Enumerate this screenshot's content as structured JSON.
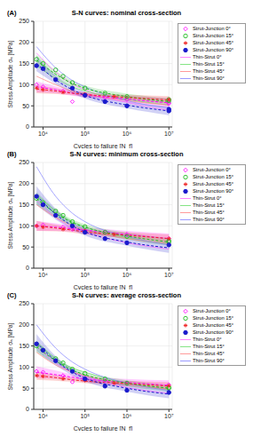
{
  "chart_data": [
    {
      "type": "scatter",
      "annotations": [
        "(A)"
      ],
      "title": "S-N curves: nominal cross-section",
      "xlabel": "Cycles to failure [N_f]",
      "ylabel": "Stress Amplitude σₐ [MPa]",
      "log": "x",
      "grid": true,
      "legend": "right",
      "xlim": [
        6000,
        12000000
      ],
      "xticks": [
        {
          "value": 10000,
          "label": "10⁴"
        },
        {
          "value": 100000,
          "label": "10⁵"
        },
        {
          "value": 1000000,
          "label": "10⁶"
        },
        {
          "value": 10000000,
          "label": "10⁷"
        }
      ],
      "ylim": [
        0,
        250
      ],
      "yticks": [
        0,
        50,
        100,
        150,
        200,
        250
      ],
      "x": [
        7000,
        20000,
        50000,
        100000,
        1000000,
        10000000
      ],
      "series": [
        {
          "name": "Strut-Junction 0°",
          "type": "scatter",
          "color": "#ff00ff",
          "marker": "diamond",
          "line_style": "dashed",
          "x": [
            7000,
            10000,
            30000,
            50000,
            100000,
            300000,
            1000000,
            10000000,
            10000000
          ],
          "values": [
            100,
            95,
            85,
            60,
            75,
            70,
            65,
            58,
            55
          ],
          "fit": [
            95,
            88,
            80,
            76,
            66,
            57
          ],
          "band_lower": [
            82,
            80,
            74,
            70,
            58,
            45
          ],
          "band_upper": [
            108,
            96,
            86,
            82,
            74,
            69
          ]
        },
        {
          "name": "Strut-Junction 15°",
          "type": "scatter",
          "color": "#22bb22",
          "marker": "circle",
          "line_style": "dashed",
          "x": [
            7000,
            10000,
            20000,
            30000,
            50000,
            100000,
            300000,
            1000000,
            10000000,
            10000000
          ],
          "values": [
            160,
            150,
            135,
            120,
            105,
            92,
            80,
            72,
            65,
            62
          ],
          "fit": [
            158,
            125,
            103,
            92,
            72,
            60
          ],
          "band_lower": [
            145,
            117,
            97,
            86,
            65,
            52
          ],
          "band_upper": [
            171,
            133,
            109,
            98,
            79,
            68
          ]
        },
        {
          "name": "Strut-Junction 45°",
          "type": "scatter",
          "color": "#ee2222",
          "marker": "star",
          "line_style": "dashed",
          "x": [
            7000,
            10000,
            30000,
            100000,
            500000,
            10000000
          ],
          "values": [
            92,
            88,
            82,
            78,
            72,
            65
          ],
          "fit": [
            90,
            85,
            80,
            77,
            70,
            64
          ],
          "band_lower": [
            80,
            78,
            75,
            72,
            64,
            55
          ],
          "band_upper": [
            100,
            92,
            85,
            82,
            76,
            73
          ]
        },
        {
          "name": "Strut-Junction 90°",
          "type": "scatter",
          "color": "#1a1acc",
          "marker": "dot",
          "line_style": "dashed",
          "x": [
            7000,
            10000,
            20000,
            50000,
            100000,
            300000,
            1000000,
            10000000,
            10000000
          ],
          "values": [
            145,
            138,
            112,
            92,
            75,
            60,
            50,
            42,
            38
          ],
          "fit": [
            150,
            112,
            88,
            75,
            52,
            38
          ],
          "band_lower": [
            132,
            102,
            80,
            67,
            44,
            28
          ],
          "band_upper": [
            168,
            122,
            96,
            83,
            60,
            48
          ]
        },
        {
          "name": "Thin-Strut 0°",
          "type": "line",
          "color": "#ff66ff",
          "line_style": "solid",
          "values": [
            175,
            130,
            102,
            88,
            58,
            40
          ]
        },
        {
          "name": "Thin-Strut 15°",
          "type": "line",
          "color": "#66dd66",
          "line_style": "solid",
          "values": [
            145,
            115,
            95,
            85,
            65,
            52
          ]
        },
        {
          "name": "Thin-Strut 45°",
          "type": "line",
          "color": "#ff8080",
          "line_style": "solid",
          "values": [
            120,
            100,
            85,
            78,
            62,
            52
          ]
        },
        {
          "name": "Thin-Strut 90°",
          "type": "line",
          "color": "#8080ff",
          "line_style": "solid",
          "values": [
            190,
            140,
            110,
            95,
            62,
            45
          ]
        }
      ]
    },
    {
      "type": "scatter",
      "annotations": [
        "(B)"
      ],
      "title": "S-N curves: minimum cross-section",
      "xlabel": "Cycles to failure [N_f]",
      "ylabel": "Stress Amplitude σₐ [MPa]",
      "log": "x",
      "grid": true,
      "legend": "right",
      "xlim": [
        6000,
        12000000
      ],
      "xticks": [
        {
          "value": 10000,
          "label": "10⁴"
        },
        {
          "value": 100000,
          "label": "10⁵"
        },
        {
          "value": 1000000,
          "label": "10⁶"
        },
        {
          "value": 10000000,
          "label": "10⁷"
        }
      ],
      "ylim": [
        0,
        250
      ],
      "yticks": [
        0,
        50,
        100,
        150,
        200,
        250
      ],
      "x": [
        7000,
        20000,
        50000,
        100000,
        1000000,
        10000000
      ],
      "series": [
        {
          "name": "Strut-Junction 0°",
          "type": "scatter",
          "color": "#ff00ff",
          "marker": "diamond",
          "line_style": "dashed",
          "x": [
            7000,
            10000,
            30000,
            50000,
            100000,
            300000,
            1000000,
            10000000
          ],
          "values": [
            100,
            102,
            97,
            92,
            88,
            85,
            80,
            70
          ],
          "fit": [
            100,
            97,
            93,
            90,
            80,
            70
          ],
          "band_lower": [
            88,
            88,
            86,
            83,
            72,
            58
          ],
          "band_upper": [
            112,
            106,
            100,
            97,
            88,
            82
          ]
        },
        {
          "name": "Strut-Junction 15°",
          "type": "scatter",
          "color": "#22bb22",
          "marker": "circle",
          "line_style": "dashed",
          "x": [
            7000,
            10000,
            20000,
            30000,
            50000,
            100000,
            300000,
            1000000,
            10000000,
            10000000
          ],
          "values": [
            165,
            155,
            135,
            125,
            110,
            98,
            85,
            75,
            65,
            62
          ],
          "fit": [
            165,
            130,
            108,
            97,
            76,
            62
          ],
          "band_lower": [
            150,
            121,
            101,
            90,
            68,
            53
          ],
          "band_upper": [
            180,
            139,
            115,
            104,
            84,
            71
          ]
        },
        {
          "name": "Strut-Junction 45°",
          "type": "scatter",
          "color": "#ee2222",
          "marker": "star",
          "line_style": "dashed",
          "x": [
            7000,
            10000,
            30000,
            100000,
            500000,
            10000000
          ],
          "values": [
            100,
            97,
            92,
            88,
            80,
            70
          ],
          "fit": [
            100,
            95,
            90,
            86,
            78,
            70
          ],
          "band_lower": [
            88,
            87,
            84,
            80,
            71,
            60
          ],
          "band_upper": [
            112,
            103,
            96,
            92,
            85,
            80
          ]
        },
        {
          "name": "Strut-Junction 90°",
          "type": "scatter",
          "color": "#1a1acc",
          "marker": "dot",
          "line_style": "dashed",
          "x": [
            7000,
            10000,
            20000,
            50000,
            100000,
            300000,
            1000000,
            10000000
          ],
          "values": [
            170,
            150,
            125,
            100,
            85,
            70,
            60,
            55
          ],
          "fit": [
            172,
            128,
            100,
            86,
            62,
            48
          ],
          "band_lower": [
            150,
            115,
            91,
            77,
            53,
            36
          ],
          "band_upper": [
            194,
            141,
            109,
            95,
            71,
            60
          ]
        },
        {
          "name": "Thin-Strut 0°",
          "type": "line",
          "color": "#ff66ff",
          "line_style": "solid",
          "values": [
            160,
            120,
            95,
            85,
            60,
            45
          ]
        },
        {
          "name": "Thin-Strut 15°",
          "type": "line",
          "color": "#66dd66",
          "line_style": "solid",
          "values": [
            175,
            135,
            110,
            98,
            72,
            58
          ]
        },
        {
          "name": "Thin-Strut 45°",
          "type": "line",
          "color": "#ff8080",
          "line_style": "solid",
          "values": [
            150,
            120,
            100,
            90,
            70,
            58
          ]
        },
        {
          "name": "Thin-Strut 90°",
          "type": "line",
          "color": "#8080ff",
          "line_style": "solid",
          "values": [
            240,
            170,
            130,
            110,
            75,
            55
          ]
        }
      ]
    },
    {
      "type": "scatter",
      "annotations": [
        "(C)"
      ],
      "title": "S-N curves: average cross-section",
      "xlabel": "Cycles to failure [N_f]",
      "ylabel": "Stress Amplitude σₐ [MPa]",
      "log": "x",
      "grid": true,
      "legend": "right",
      "xlim": [
        6000,
        12000000
      ],
      "xticks": [
        {
          "value": 10000,
          "label": "10⁴"
        },
        {
          "value": 100000,
          "label": "10⁵"
        },
        {
          "value": 1000000,
          "label": "10⁶"
        },
        {
          "value": 10000000,
          "label": "10⁷"
        }
      ],
      "ylim": [
        0,
        250
      ],
      "yticks": [
        0,
        50,
        100,
        150,
        200,
        250
      ],
      "x": [
        7000,
        20000,
        50000,
        100000,
        1000000,
        10000000
      ],
      "series": [
        {
          "name": "Strut-Junction 0°",
          "type": "scatter",
          "color": "#ff00ff",
          "marker": "diamond",
          "line_style": "dashed",
          "x": [
            7000,
            10000,
            30000,
            50000,
            100000,
            300000,
            1000000,
            10000000
          ],
          "values": [
            90,
            88,
            80,
            65,
            72,
            68,
            62,
            58
          ],
          "fit": [
            88,
            82,
            76,
            72,
            64,
            57
          ],
          "band_lower": [
            74,
            72,
            69,
            65,
            56,
            45
          ],
          "band_upper": [
            102,
            92,
            83,
            79,
            72,
            69
          ]
        },
        {
          "name": "Strut-Junction 15°",
          "type": "scatter",
          "color": "#22bb22",
          "marker": "circle",
          "line_style": "dashed",
          "x": [
            7000,
            10000,
            20000,
            30000,
            50000,
            100000,
            300000,
            1000000,
            10000000,
            10000000
          ],
          "values": [
            150,
            140,
            120,
            110,
            95,
            85,
            72,
            62,
            52,
            50
          ],
          "fit": [
            148,
            115,
            93,
            82,
            62,
            50
          ],
          "band_lower": [
            135,
            107,
            87,
            76,
            55,
            42
          ],
          "band_upper": [
            161,
            123,
            99,
            88,
            69,
            58
          ]
        },
        {
          "name": "Strut-Junction 45°",
          "type": "scatter",
          "color": "#ee2222",
          "marker": "star",
          "line_style": "dashed",
          "x": [
            7000,
            10000,
            30000,
            100000,
            500000,
            10000000
          ],
          "values": [
            80,
            78,
            72,
            68,
            62,
            56
          ],
          "fit": [
            80,
            75,
            70,
            67,
            61,
            55
          ],
          "band_lower": [
            70,
            68,
            65,
            62,
            55,
            46
          ],
          "band_upper": [
            90,
            82,
            75,
            72,
            67,
            64
          ]
        },
        {
          "name": "Strut-Junction 90°",
          "type": "scatter",
          "color": "#1a1acc",
          "marker": "dot",
          "line_style": "dashed",
          "x": [
            7000,
            10000,
            20000,
            50000,
            100000,
            300000,
            1000000,
            10000000
          ],
          "values": [
            155,
            140,
            115,
            90,
            72,
            55,
            45,
            40
          ],
          "fit": [
            158,
            115,
            88,
            74,
            50,
            36
          ],
          "band_lower": [
            138,
            104,
            80,
            66,
            42,
            26
          ],
          "band_upper": [
            178,
            126,
            96,
            82,
            58,
            46
          ]
        },
        {
          "name": "Thin-Strut 0°",
          "type": "line",
          "color": "#ff66ff",
          "line_style": "solid",
          "values": [
            150,
            110,
            88,
            78,
            52,
            38
          ]
        },
        {
          "name": "Thin-Strut 15°",
          "type": "line",
          "color": "#66dd66",
          "line_style": "solid",
          "values": [
            160,
            120,
            98,
            88,
            62,
            48
          ]
        },
        {
          "name": "Thin-Strut 45°",
          "type": "line",
          "color": "#ff8080",
          "line_style": "solid",
          "values": [
            135,
            105,
            88,
            80,
            60,
            48
          ]
        },
        {
          "name": "Thin-Strut 90°",
          "type": "line",
          "color": "#8080ff",
          "line_style": "solid",
          "values": [
            200,
            145,
            112,
            95,
            62,
            45
          ]
        }
      ]
    }
  ]
}
